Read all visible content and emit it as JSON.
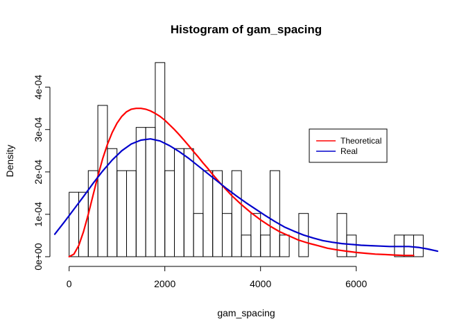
{
  "chart_data": {
    "type": "histogram",
    "title": "Histogram of gam_spacing",
    "xlabel": "gam_spacing",
    "ylabel": "Density",
    "xlim": [
      -300,
      7700
    ],
    "ylim": [
      0,
      0.00046
    ],
    "x_ticks": [
      0,
      2000,
      4000,
      6000
    ],
    "x_tick_labels": [
      "0",
      "2000",
      "4000",
      "6000"
    ],
    "y_ticks": [
      0,
      0.0001,
      0.0002,
      0.0003,
      0.0004
    ],
    "y_tick_labels": [
      "0e+00",
      "1e-04",
      "2e-04",
      "3e-04",
      "4e-04"
    ],
    "bin_width": 200,
    "bins": [
      {
        "x0": 0,
        "x1": 200,
        "density": 0.000152
      },
      {
        "x0": 200,
        "x1": 400,
        "density": 0.000152
      },
      {
        "x0": 400,
        "x1": 600,
        "density": 0.000203
      },
      {
        "x0": 600,
        "x1": 800,
        "density": 0.000357
      },
      {
        "x0": 800,
        "x1": 1000,
        "density": 0.000255
      },
      {
        "x0": 1000,
        "x1": 1200,
        "density": 0.000203
      },
      {
        "x0": 1200,
        "x1": 1400,
        "density": 0.000203
      },
      {
        "x0": 1400,
        "x1": 1600,
        "density": 0.000305
      },
      {
        "x0": 1600,
        "x1": 1800,
        "density": 0.000305
      },
      {
        "x0": 1800,
        "x1": 2000,
        "density": 0.000458
      },
      {
        "x0": 2000,
        "x1": 2200,
        "density": 0.000203
      },
      {
        "x0": 2200,
        "x1": 2400,
        "density": 0.000255
      },
      {
        "x0": 2400,
        "x1": 2600,
        "density": 0.000255
      },
      {
        "x0": 2600,
        "x1": 2800,
        "density": 0.000102
      },
      {
        "x0": 2800,
        "x1": 3000,
        "density": 0.000203
      },
      {
        "x0": 3000,
        "x1": 3200,
        "density": 0.000203
      },
      {
        "x0": 3200,
        "x1": 3400,
        "density": 0.000102
      },
      {
        "x0": 3400,
        "x1": 3600,
        "density": 0.000203
      },
      {
        "x0": 3600,
        "x1": 3800,
        "density": 5.1e-05
      },
      {
        "x0": 3800,
        "x1": 4000,
        "density": 0.000102
      },
      {
        "x0": 4000,
        "x1": 4200,
        "density": 5.1e-05
      },
      {
        "x0": 4200,
        "x1": 4400,
        "density": 0.000203
      },
      {
        "x0": 4400,
        "x1": 4600,
        "density": 5.1e-05
      },
      {
        "x0": 4600,
        "x1": 4800,
        "density": 0.0
      },
      {
        "x0": 4800,
        "x1": 5000,
        "density": 0.000102
      },
      {
        "x0": 5000,
        "x1": 5200,
        "density": 0.0
      },
      {
        "x0": 5200,
        "x1": 5400,
        "density": 0.0
      },
      {
        "x0": 5400,
        "x1": 5600,
        "density": 0.0
      },
      {
        "x0": 5600,
        "x1": 5800,
        "density": 0.000102
      },
      {
        "x0": 5800,
        "x1": 6000,
        "density": 5.1e-05
      },
      {
        "x0": 6000,
        "x1": 6200,
        "density": 0.0
      },
      {
        "x0": 6200,
        "x1": 6400,
        "density": 0.0
      },
      {
        "x0": 6400,
        "x1": 6600,
        "density": 0.0
      },
      {
        "x0": 6600,
        "x1": 6800,
        "density": 0.0
      },
      {
        "x0": 6800,
        "x1": 7000,
        "density": 5.1e-05
      },
      {
        "x0": 7000,
        "x1": 7200,
        "density": 5.1e-05
      },
      {
        "x0": 7200,
        "x1": 7400,
        "density": 5.1e-05
      }
    ],
    "series": [
      {
        "name": "Theoretical",
        "color": "#ff0000",
        "x": [
          0,
          100,
          200,
          300,
          400,
          500,
          600,
          700,
          800,
          900,
          1000,
          1100,
          1200,
          1300,
          1400,
          1500,
          1600,
          1700,
          1800,
          1900,
          2000,
          2100,
          2200,
          2300,
          2400,
          2500,
          2600,
          2700,
          2800,
          2900,
          3000,
          3200,
          3400,
          3600,
          3800,
          4000,
          4200,
          4400,
          4600,
          4800,
          5000,
          5200,
          5400,
          5600,
          5800,
          6000,
          6200,
          6400,
          6600,
          6800,
          7000,
          7200
        ],
        "y": [
          0.0,
          6e-06,
          2.6e-05,
          5.9e-05,
          0.0001,
          0.000145,
          0.00019,
          0.000231,
          0.000265,
          0.000293,
          0.000315,
          0.000331,
          0.000342,
          0.000348,
          0.00035,
          0.00035,
          0.000348,
          0.000344,
          0.000338,
          0.000331,
          0.000322,
          0.000311,
          0.0003,
          0.000288,
          0.000275,
          0.000262,
          0.000248,
          0.000235,
          0.000221,
          0.000208,
          0.000194,
          0.000168,
          0.000144,
          0.000123,
          0.000104,
          8.7e-05,
          7.2e-05,
          5.9e-05,
          4.9e-05,
          3.9e-05,
          3.2e-05,
          2.6e-05,
          2e-05,
          1.6e-05,
          1.3e-05,
          1e-05,
          8e-06,
          6e-06,
          5e-06,
          4e-06,
          3e-06,
          3e-06
        ]
      },
      {
        "name": "Real",
        "color": "#0000cc",
        "x": [
          -300,
          -100,
          100,
          300,
          500,
          700,
          900,
          1100,
          1300,
          1500,
          1700,
          1900,
          2100,
          2300,
          2500,
          2700,
          2900,
          3100,
          3300,
          3500,
          3700,
          3900,
          4100,
          4300,
          4500,
          4700,
          4900,
          5100,
          5300,
          5500,
          5700,
          5900,
          6100,
          6300,
          6500,
          6700,
          6900,
          7100,
          7300,
          7500,
          7700
        ],
        "y": [
          5.3e-05,
          8.2e-05,
          0.000112,
          0.000142,
          0.000173,
          0.000202,
          0.000228,
          0.00025,
          0.000266,
          0.000275,
          0.000278,
          0.000273,
          0.000262,
          0.000248,
          0.000232,
          0.000214,
          0.000196,
          0.000178,
          0.00016,
          0.000143,
          0.000127,
          0.000112,
          9.7e-05,
          8.3e-05,
          7e-05,
          6e-05,
          5.1e-05,
          4.4e-05,
          3.8e-05,
          3.4e-05,
          3.1e-05,
          2.9e-05,
          2.7e-05,
          2.6e-05,
          2.5e-05,
          2.4e-05,
          2.4e-05,
          2.4e-05,
          2.2e-05,
          1.8e-05,
          1.3e-05
        ]
      }
    ],
    "legend": {
      "position": "right",
      "entries": [
        {
          "label": "Theoretical",
          "color": "#ff0000"
        },
        {
          "label": "Real",
          "color": "#0000cc"
        }
      ]
    }
  }
}
